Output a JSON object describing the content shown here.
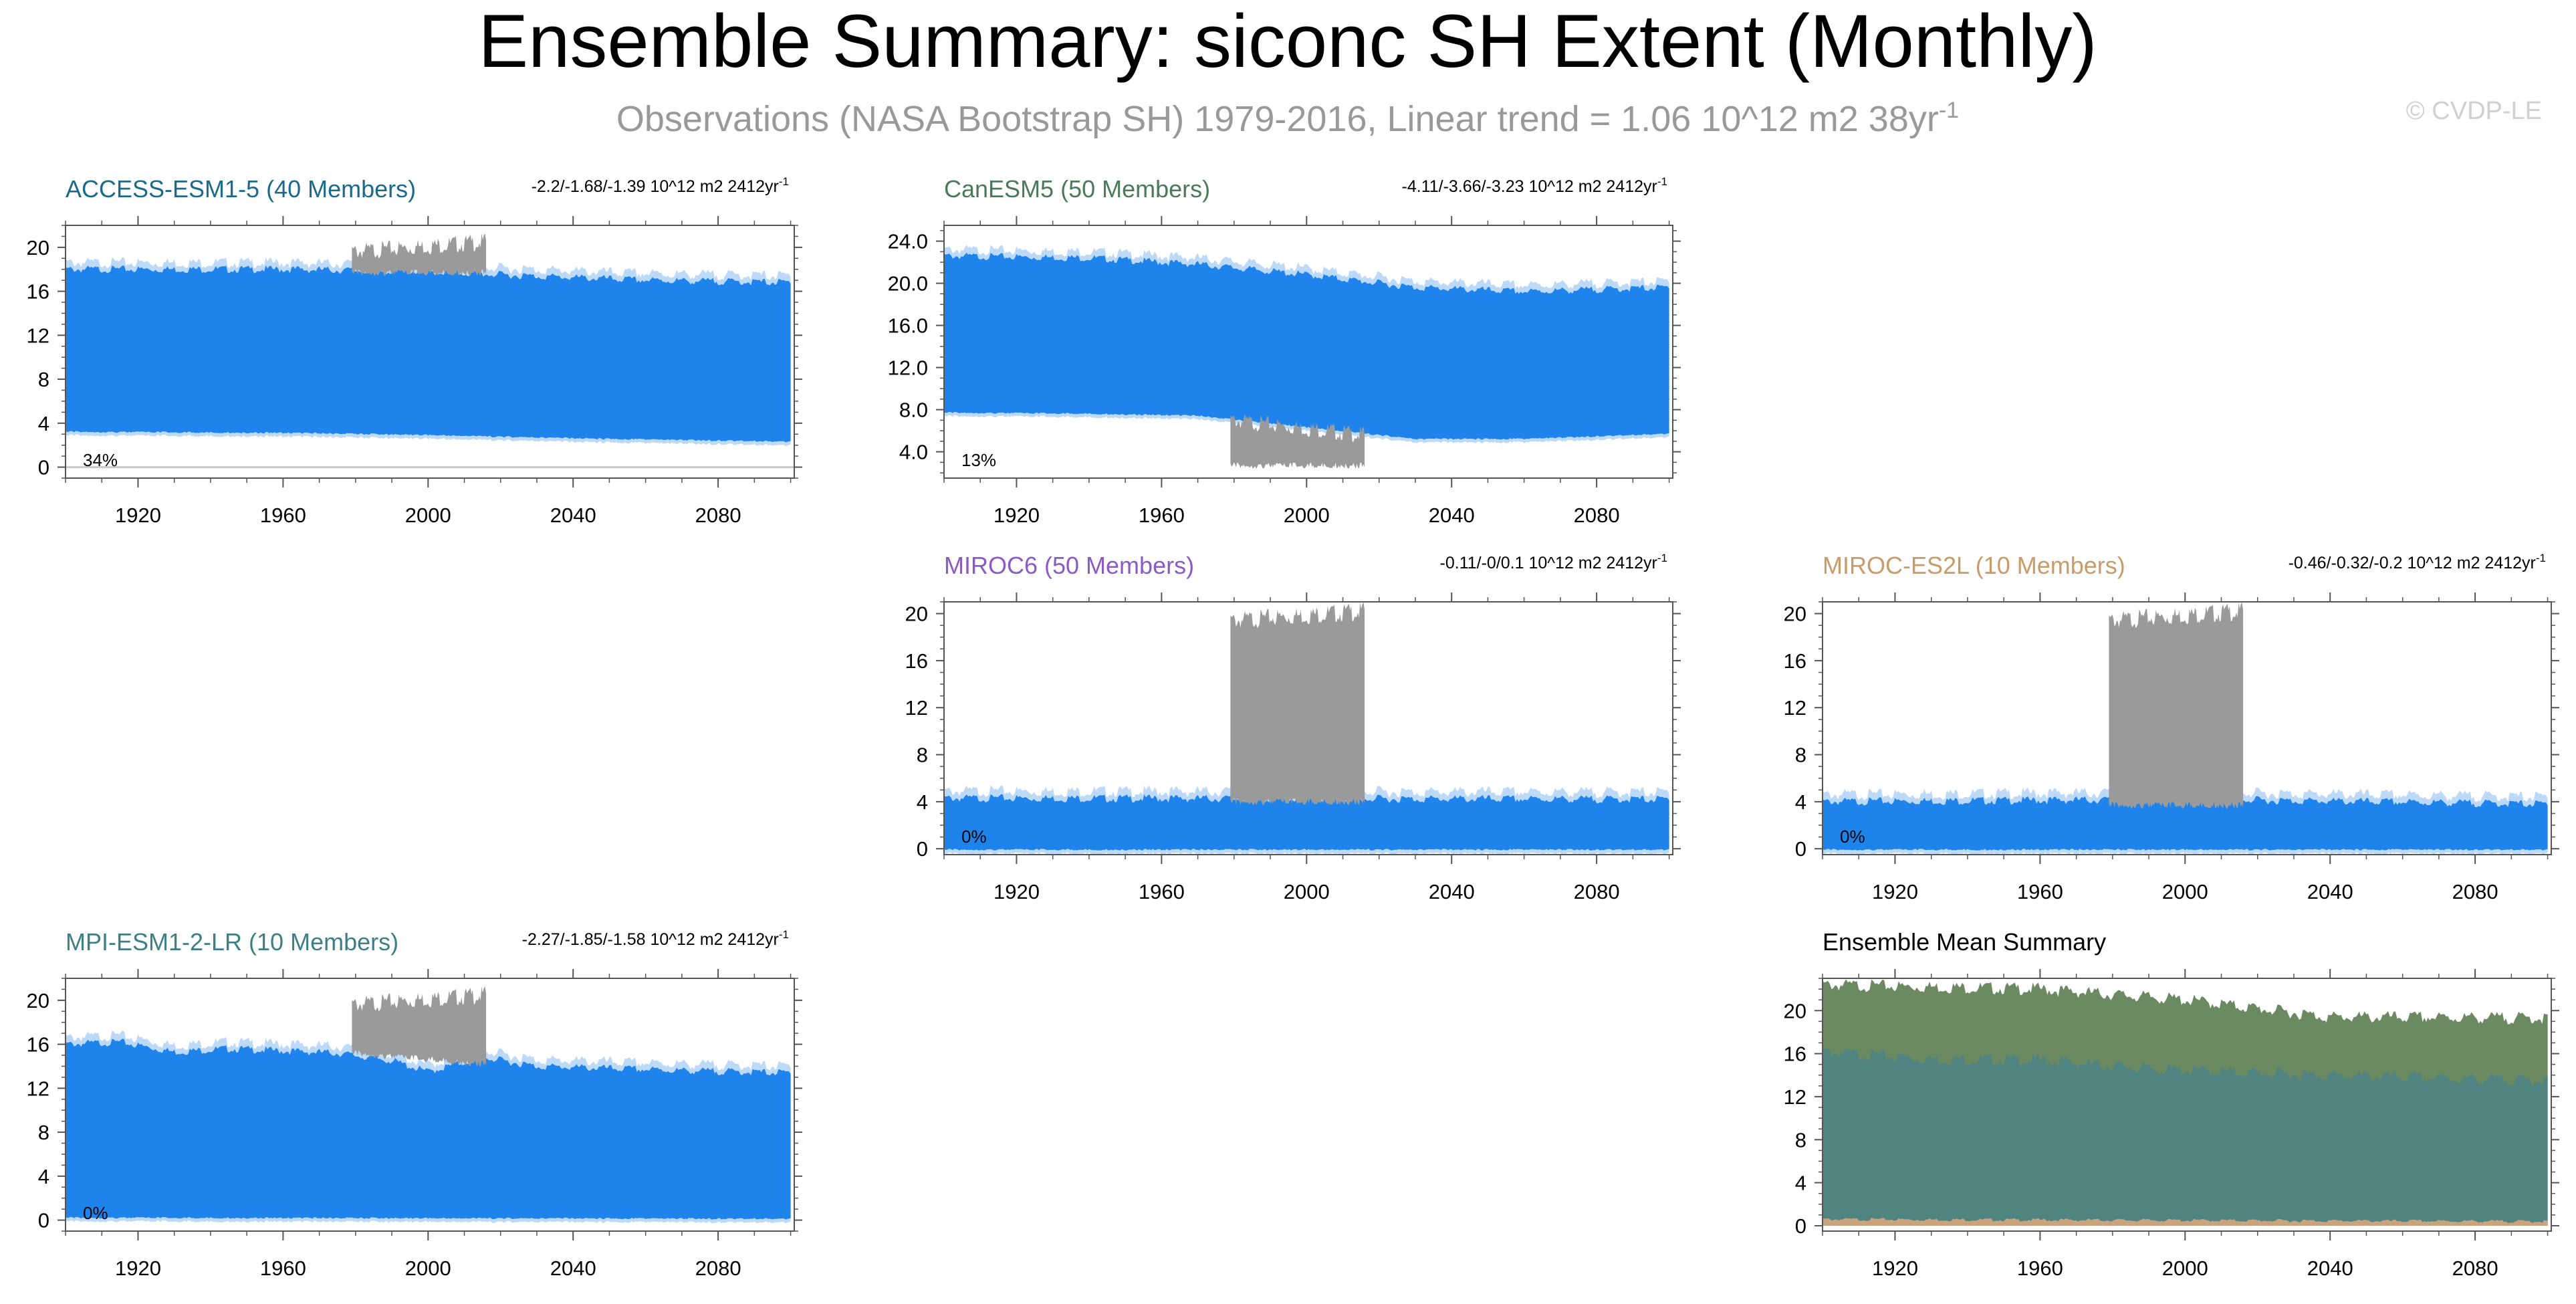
{
  "header": {
    "title": "Ensemble Summary: siconc SH Extent (Monthly)",
    "subtitle": "Observations (NASA Bootstrap SH) 1979-2016, Linear trend = 1.06 10^12 m2 38yr",
    "subtitle_sup": "-1",
    "watermark": "© CVDP-LE"
  },
  "colors": {
    "ensemble": "#1E84EC",
    "observations": "#9A9A9A",
    "axis": "#555555",
    "mean_canesm5": "#6B8A62",
    "mean_mpi": "#4F8481",
    "mean_miroc_es2l": "#C8A37E"
  },
  "chart_data": [
    {
      "type": "area",
      "title": "ACCESS-ESM1-5 (40 Members)",
      "title_color": "#1A6A8C",
      "trend_label": "-2.2/-1.68/-1.39 10^12 m2 2412yr",
      "trend_sup": "-1",
      "pct_label": "34%",
      "xlim": [
        1900,
        2101
      ],
      "ylim": [
        -1,
        22
      ],
      "xticks": [
        "1920",
        "1960",
        "2000",
        "2040",
        "2080"
      ],
      "yticks": [
        "0",
        "4",
        "8",
        "12",
        "16",
        "20"
      ],
      "ensemble_upper": [
        [
          1900,
          18.0
        ],
        [
          1960,
          18.0
        ],
        [
          2000,
          17.8
        ],
        [
          2020,
          17.5
        ],
        [
          2060,
          17.0
        ],
        [
          2100,
          16.8
        ]
      ],
      "ensemble_lower": [
        [
          1900,
          3.3
        ],
        [
          1960,
          3.2
        ],
        [
          2000,
          3.0
        ],
        [
          2040,
          2.7
        ],
        [
          2100,
          2.4
        ]
      ],
      "obs_range": [
        1979,
        2016
      ],
      "obs_upper": [
        19.6,
        20.5
      ],
      "obs_lower": [
        18.0,
        18.0
      ],
      "zero_line": true
    },
    {
      "type": "area",
      "title": "CanESM5 (50 Members)",
      "title_color": "#4B7A5A",
      "trend_label": "-4.11/-3.66/-3.23 10^12 m2 2412yr",
      "trend_sup": "-1",
      "pct_label": "13%",
      "xlim": [
        1900,
        2101
      ],
      "ylim": [
        1.5,
        25.5
      ],
      "xticks": [
        "1920",
        "1960",
        "2000",
        "2040",
        "2080"
      ],
      "yticks": [
        "4.0",
        "8.0",
        "12.0",
        "16.0",
        "20.0",
        "24.0"
      ],
      "ensemble_upper": [
        [
          1900,
          22.6
        ],
        [
          1940,
          22.4
        ],
        [
          1970,
          21.8
        ],
        [
          2000,
          20.8
        ],
        [
          2030,
          19.6
        ],
        [
          2060,
          19.2
        ],
        [
          2100,
          19.6
        ]
      ],
      "ensemble_lower": [
        [
          1900,
          7.8
        ],
        [
          1940,
          7.7
        ],
        [
          1970,
          7.5
        ],
        [
          2000,
          6.4
        ],
        [
          2030,
          5.3
        ],
        [
          2060,
          5.3
        ],
        [
          2100,
          5.8
        ]
      ],
      "obs_range": [
        1979,
        2016
      ],
      "obs_upper": [
        7.0,
        5.6
      ],
      "obs_lower": [
        3.0,
        3.0
      ],
      "zero_line": false
    },
    {
      "type": "area",
      "title": "MIROC6 (50 Members)",
      "title_color": "#8C5AC8",
      "trend_label": "-0.11/-0/0.1 10^12 m2 2412yr",
      "trend_sup": "-1",
      "pct_label": "0%",
      "xlim": [
        1900,
        2101
      ],
      "ylim": [
        -0.5,
        21
      ],
      "xticks": [
        "1920",
        "1960",
        "2000",
        "2040",
        "2080"
      ],
      "yticks": [
        "0",
        "4",
        "8",
        "12",
        "16",
        "20"
      ],
      "ensemble_upper": [
        [
          1900,
          4.3
        ],
        [
          2100,
          4.2
        ]
      ],
      "ensemble_lower": [
        [
          1900,
          0.0
        ],
        [
          2100,
          0.0
        ]
      ],
      "obs_range": [
        1979,
        2016
      ],
      "obs_upper": [
        19.4,
        20.2
      ],
      "obs_lower": [
        4.3,
        4.3
      ],
      "zero_line": false
    },
    {
      "type": "area",
      "title": "MIROC-ES2L (10 Members)",
      "title_color": "#C89B69",
      "trend_label": "-0.46/-0.32/-0.2 10^12 m2 2412yr",
      "trend_sup": "-1",
      "pct_label": "0%",
      "xlim": [
        1900,
        2101
      ],
      "ylim": [
        -0.5,
        21
      ],
      "xticks": [
        "1920",
        "1960",
        "2000",
        "2040",
        "2080"
      ],
      "yticks": [
        "0",
        "4",
        "8",
        "12",
        "16",
        "20"
      ],
      "ensemble_upper": [
        [
          1900,
          4.0
        ],
        [
          2000,
          4.2
        ],
        [
          2100,
          3.8
        ]
      ],
      "ensemble_lower": [
        [
          1900,
          0.0
        ],
        [
          2100,
          0.0
        ]
      ],
      "obs_range": [
        1979,
        2016
      ],
      "obs_upper": [
        19.4,
        20.2
      ],
      "obs_lower": [
        4.0,
        4.0
      ],
      "zero_line": false
    },
    {
      "type": "area",
      "title": "MPI-ESM1-2-LR (10 Members)",
      "title_color": "#3D7F86",
      "trend_label": "-2.27/-1.85/-1.58 10^12 m2 2412yr",
      "trend_sup": "-1",
      "pct_label": "0%",
      "xlim": [
        1900,
        2101
      ],
      "ylim": [
        -1,
        22
      ],
      "xticks": [
        "1920",
        "1960",
        "2000",
        "2040",
        "2080"
      ],
      "yticks": [
        "0",
        "4",
        "8",
        "12",
        "16",
        "20"
      ],
      "ensemble_upper": [
        [
          1900,
          16.0
        ],
        [
          1915,
          16.2
        ],
        [
          1930,
          15.3
        ],
        [
          1945,
          15.6
        ],
        [
          1960,
          15.4
        ],
        [
          1975,
          15.2
        ],
        [
          1990,
          14.5
        ],
        [
          2000,
          13.5
        ],
        [
          2015,
          14.8
        ],
        [
          2030,
          14.0
        ],
        [
          2050,
          13.8
        ],
        [
          2070,
          13.6
        ],
        [
          2100,
          13.4
        ]
      ],
      "ensemble_lower": [
        [
          1900,
          0.3
        ],
        [
          2100,
          0.2
        ]
      ],
      "obs_range": [
        1979,
        2016
      ],
      "obs_upper": [
        19.6,
        20.5
      ],
      "obs_lower": [
        15.5,
        14.5
      ],
      "zero_line": false
    },
    {
      "type": "area",
      "title": "Ensemble Mean Summary",
      "title_color": "#000000",
      "xlim": [
        1900,
        2101
      ],
      "ylim": [
        -0.5,
        23
      ],
      "xticks": [
        "1920",
        "1960",
        "2000",
        "2040",
        "2080"
      ],
      "yticks": [
        "0",
        "4",
        "8",
        "12",
        "16",
        "20"
      ],
      "series": [
        {
          "name": "CanESM5",
          "upper": [
            [
              1900,
              22.4
            ],
            [
              1960,
              22.0
            ],
            [
              2000,
              21.0
            ],
            [
              2040,
              19.4
            ],
            [
              2100,
              19.3
            ]
          ]
        },
        {
          "name": "MPI-ESM1-2-LR",
          "upper": [
            [
              1900,
              16.2
            ],
            [
              1930,
              15.5
            ],
            [
              1960,
              15.4
            ],
            [
              1990,
              14.6
            ],
            [
              2020,
              14.2
            ],
            [
              2060,
              13.8
            ],
            [
              2100,
              13.5
            ]
          ]
        },
        {
          "name": "MIROC-ES2L",
          "upper": [
            [
              1900,
              0.6
            ],
            [
              2100,
              0.4
            ]
          ]
        }
      ]
    }
  ]
}
